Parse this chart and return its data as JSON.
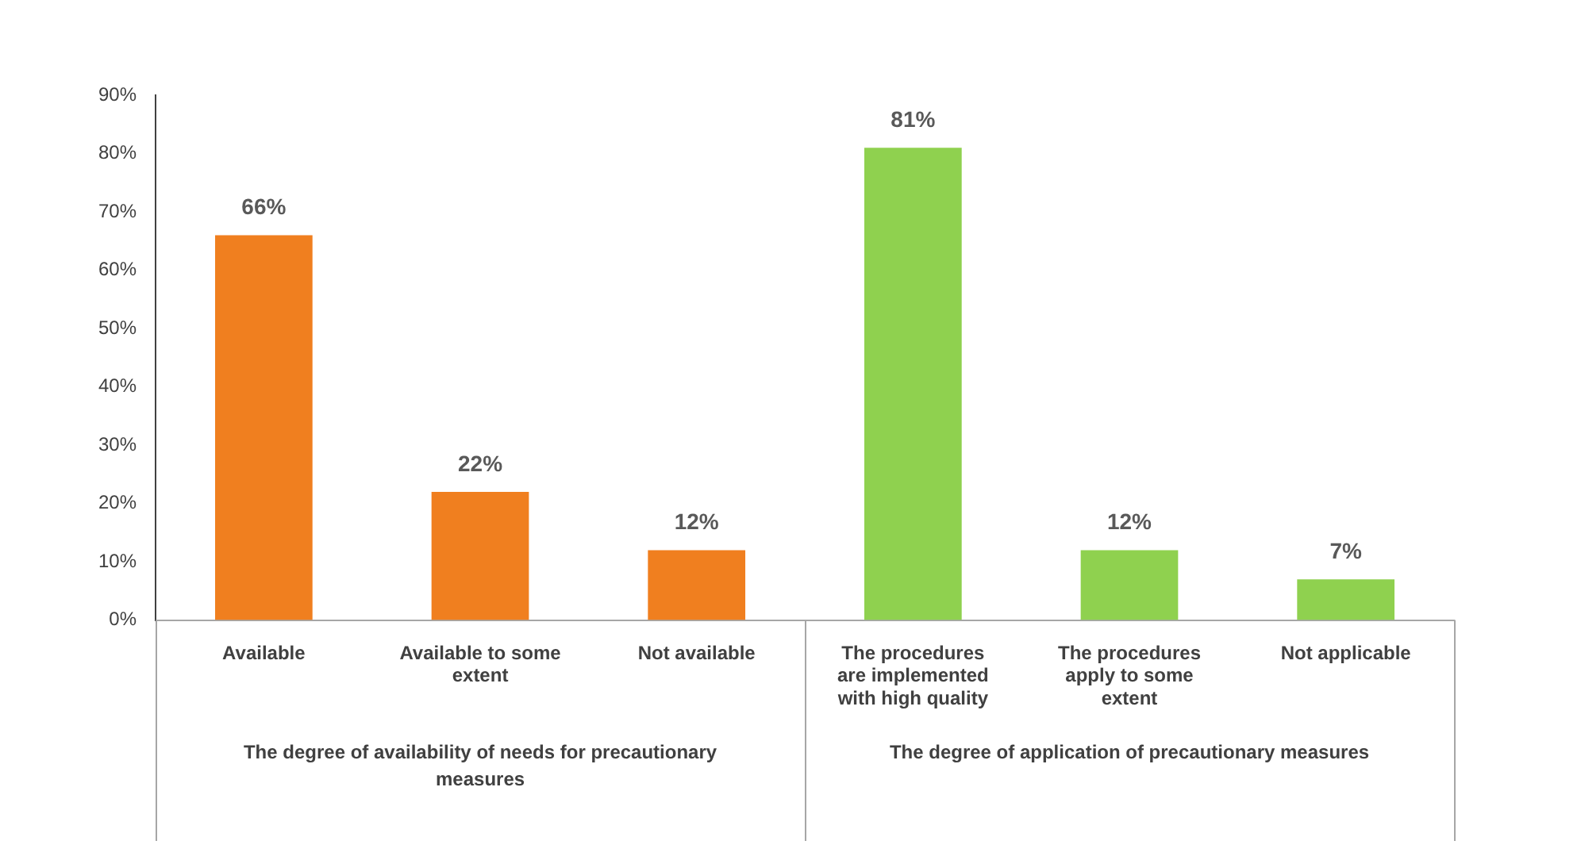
{
  "chart_data": {
    "type": "bar",
    "categories": [
      "Available",
      "Available to some extent",
      "Not available",
      "The procedures are implemented with high quality",
      "The procedures apply to some extent",
      "Not applicable"
    ],
    "values": [
      66,
      22,
      12,
      81,
      12,
      7
    ],
    "colors": [
      "#f07f1f",
      "#f07f1f",
      "#f07f1f",
      "#8fd14f",
      "#8fd14f",
      "#8fd14f"
    ],
    "value_labels": [
      "66%",
      "22%",
      "12%",
      "81%",
      "12%",
      "7%"
    ],
    "ylim": [
      0,
      90
    ],
    "yticks": [
      {
        "value": 0,
        "label": "0%"
      },
      {
        "value": 10,
        "label": "10%"
      },
      {
        "value": 20,
        "label": "20%"
      },
      {
        "value": 30,
        "label": "30%"
      },
      {
        "value": 40,
        "label": "40%"
      },
      {
        "value": 50,
        "label": "50%"
      },
      {
        "value": 60,
        "label": "60%"
      },
      {
        "value": 70,
        "label": "70%"
      },
      {
        "value": 80,
        "label": "80%"
      },
      {
        "value": 90,
        "label": "90%"
      }
    ],
    "grid": false,
    "legend": false,
    "annotations": [
      "The degree of availability of needs for precautionary measures",
      "The degree of application of precautionary measures"
    ]
  }
}
